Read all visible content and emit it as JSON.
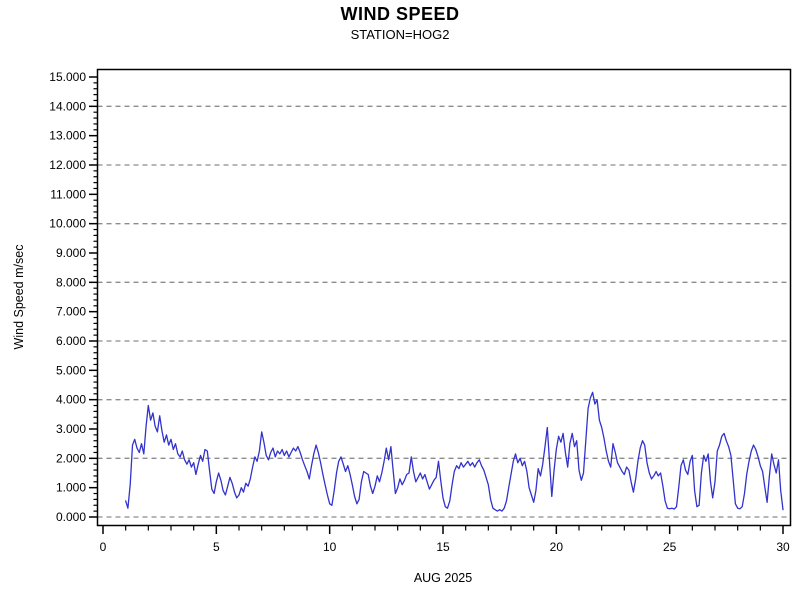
{
  "header": {
    "title": "WIND SPEED",
    "subtitle": "STATION=HOG2"
  },
  "colors": {
    "background": "#ffffff",
    "frame": "#000000",
    "grid": "#8c8c8c",
    "line": "#3232cd",
    "text": "#000000"
  },
  "chart_data": {
    "type": "line",
    "title": "WIND SPEED",
    "subtitle": "STATION=HOG2",
    "xlabel": "AUG 2025",
    "ylabel": "Wind Speed m/sec",
    "xlim": [
      0,
      30
    ],
    "ylim": [
      0,
      15
    ],
    "x_major_ticks": [
      0,
      5,
      10,
      15,
      20,
      25,
      30
    ],
    "x_tick_labels": [
      "0",
      "5",
      "10",
      "15",
      "20",
      "25",
      "30"
    ],
    "x_minor_tick_step": 1,
    "y_major_tick_step": 1,
    "y_tick_labels": [
      "0.000",
      "1.000",
      "2.000",
      "3.000",
      "4.000",
      "5.000",
      "6.000",
      "7.000",
      "8.000",
      "9.000",
      "10.000",
      "11.000",
      "12.000",
      "13.000",
      "14.000",
      "15.000"
    ],
    "y_minor_ticks_per_major": 4,
    "y_gridlines": [
      0,
      2,
      4,
      6,
      8,
      10,
      12,
      14
    ],
    "grid_style": "dashed",
    "legend_position": "none",
    "series": [
      {
        "name": "wind speed (m/sec)",
        "color": "#3232cd",
        "x_start": 1.0,
        "x_step": 0.1,
        "values": [
          0.55,
          0.3,
          1.1,
          2.45,
          2.65,
          2.35,
          2.2,
          2.5,
          2.15,
          3.1,
          3.8,
          3.3,
          3.55,
          3.1,
          2.9,
          3.45,
          2.95,
          2.55,
          2.8,
          2.45,
          2.65,
          2.3,
          2.5,
          2.15,
          2.05,
          2.25,
          1.95,
          1.8,
          1.95,
          1.7,
          1.85,
          1.45,
          1.8,
          2.1,
          1.9,
          2.3,
          2.25,
          1.6,
          0.95,
          0.8,
          1.2,
          1.5,
          1.25,
          0.9,
          0.75,
          1.05,
          1.35,
          1.15,
          0.85,
          0.65,
          0.75,
          1.0,
          0.85,
          1.15,
          1.05,
          1.3,
          1.7,
          2.05,
          1.9,
          2.25,
          2.9,
          2.55,
          2.1,
          1.95,
          2.2,
          2.35,
          2.05,
          2.25,
          2.15,
          2.3,
          2.1,
          2.25,
          2.05,
          2.2,
          2.35,
          2.25,
          2.4,
          2.2,
          1.95,
          1.75,
          1.55,
          1.3,
          1.75,
          2.15,
          2.45,
          2.2,
          1.85,
          1.45,
          1.1,
          0.75,
          0.45,
          0.4,
          0.9,
          1.5,
          1.9,
          2.05,
          1.8,
          1.55,
          1.75,
          1.45,
          1.1,
          0.7,
          0.45,
          0.6,
          1.2,
          1.55,
          1.5,
          1.45,
          1.05,
          0.8,
          1.05,
          1.4,
          1.2,
          1.5,
          1.9,
          2.35,
          1.95,
          2.4,
          1.6,
          0.8,
          1.0,
          1.3,
          1.1,
          1.25,
          1.45,
          1.5,
          2.05,
          1.55,
          1.2,
          1.35,
          1.5,
          1.3,
          1.45,
          1.2,
          0.95,
          1.1,
          1.25,
          1.35,
          1.9,
          1.25,
          0.65,
          0.35,
          0.3,
          0.55,
          1.1,
          1.55,
          1.75,
          1.65,
          1.85,
          1.7,
          1.8,
          1.9,
          1.75,
          1.85,
          1.7,
          1.85,
          1.95,
          1.75,
          1.6,
          1.35,
          1.1,
          0.6,
          0.3,
          0.25,
          0.2,
          0.25,
          0.2,
          0.3,
          0.55,
          1.0,
          1.45,
          1.9,
          2.15,
          1.85,
          2.0,
          1.75,
          1.9,
          1.55,
          1.0,
          0.75,
          0.5,
          0.9,
          1.65,
          1.4,
          1.8,
          2.4,
          3.05,
          1.9,
          0.7,
          1.6,
          2.3,
          2.75,
          2.55,
          2.85,
          2.2,
          1.7,
          2.5,
          2.85,
          2.4,
          2.6,
          1.6,
          1.25,
          1.5,
          2.6,
          3.7,
          4.05,
          4.25,
          3.85,
          4.0,
          3.3,
          3.05,
          2.7,
          2.25,
          1.9,
          1.7,
          2.5,
          2.2,
          1.85,
          1.7,
          1.55,
          1.45,
          1.7,
          1.6,
          1.2,
          0.85,
          1.3,
          1.9,
          2.35,
          2.6,
          2.45,
          1.85,
          1.5,
          1.3,
          1.4,
          1.55,
          1.4,
          1.5,
          1.05,
          0.55,
          0.3,
          0.28,
          0.3,
          0.27,
          0.35,
          1.0,
          1.75,
          1.95,
          1.6,
          1.45,
          1.9,
          2.1,
          0.9,
          0.35,
          0.4,
          1.5,
          2.1,
          1.9,
          2.15,
          1.2,
          0.65,
          1.2,
          2.25,
          2.45,
          2.75,
          2.85,
          2.6,
          2.4,
          2.1,
          1.3,
          0.45,
          0.3,
          0.28,
          0.35,
          0.8,
          1.45,
          1.9,
          2.25,
          2.45,
          2.3,
          2.05,
          1.75,
          1.55,
          1.0,
          0.5,
          1.4,
          2.15,
          1.8,
          1.5,
          1.95,
          0.9,
          0.25
        ]
      }
    ]
  }
}
